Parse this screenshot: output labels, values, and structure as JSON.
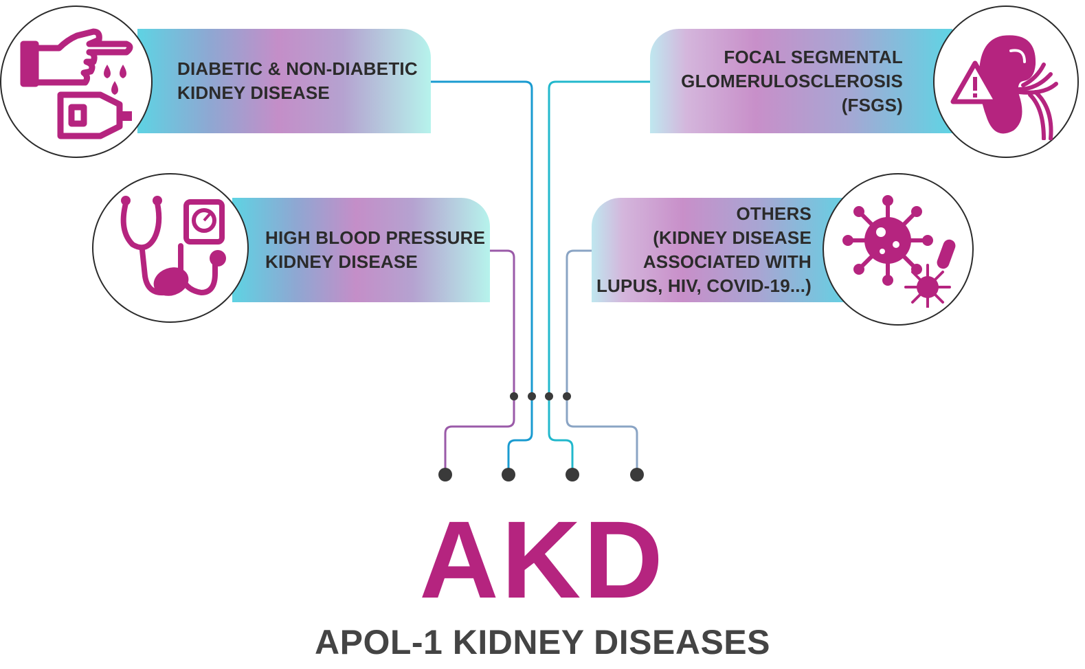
{
  "colors": {
    "accent": "#b5247f",
    "dark_text": "#2b2b2b",
    "wire_purple": "#9a5aa8",
    "wire_blue": "#1a9bd0",
    "wire_teal": "#22b8cc",
    "wire_steel": "#8aa4c4"
  },
  "items": [
    {
      "line1": "DIABETIC & NON-DIABETIC",
      "line2": "KIDNEY DISEASE",
      "icon": "hand-blood-drop-glucose-meter-icon"
    },
    {
      "line1": "HIGH BLOOD PRESSURE",
      "line2": "KIDNEY DISEASE",
      "icon": "stethoscope-blood-pressure-gauge-icon"
    },
    {
      "line1": "FOCAL SEGMENTAL",
      "line2": "GLOMERULOSCLEROSIS",
      "line3": "(FSGS)",
      "icon": "kidney-warning-icon"
    },
    {
      "line1": "OTHERS",
      "line2": "(KIDNEY DISEASE",
      "line3": "ASSOCIATED WITH",
      "line4": "LUPUS, HIV, COVID-19...)",
      "icon": "virus-icon"
    }
  ],
  "title": "AKD",
  "subtitle": "APOL-1 KIDNEY DISEASES"
}
